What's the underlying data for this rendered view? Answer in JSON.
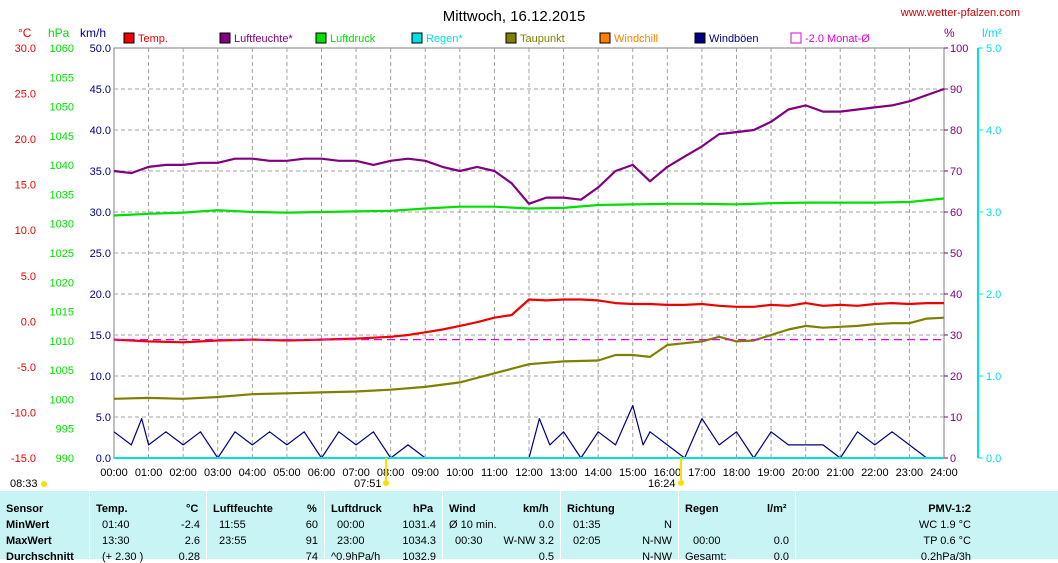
{
  "title": "Mittwoch, 16.12.2015",
  "website": "www.wetter-pfalzen.com",
  "colors": {
    "temp": "#ee0000",
    "humidity": "#800080",
    "pressure": "#00e000",
    "rain": "#00e0e0",
    "dewpoint": "#808000",
    "windchill": "#ff8000",
    "gust": "#000080",
    "monthavg": "#e000e0",
    "table_bg": "#c8f4f6"
  },
  "axes": {
    "temp_unit": "°C",
    "pressure_unit": "hPa",
    "wind_unit": "km/h",
    "humidity_unit": "%",
    "rain_unit": "l/m²",
    "temp_ticks": [
      "30.0",
      "25.0",
      "20.0",
      "15.0",
      "10.0",
      "5.0",
      "0.0",
      "-5.0",
      "-10.0",
      "-15.0"
    ],
    "pressure_ticks": [
      "1060",
      "1055",
      "1050",
      "1045",
      "1040",
      "1035",
      "1030",
      "1025",
      "1020",
      "1015",
      "1010",
      "1005",
      "1000",
      "995",
      "990"
    ],
    "wind_ticks": [
      "50.0",
      "45.0",
      "40.0",
      "35.0",
      "30.0",
      "25.0",
      "20.0",
      "15.0",
      "10.0",
      "5.0",
      "0.0"
    ],
    "humidity_ticks": [
      "100",
      "90",
      "80",
      "70",
      "60",
      "50",
      "40",
      "30",
      "20",
      "10",
      "0"
    ],
    "rain_ticks": [
      "5.0",
      "4.0",
      "3.0",
      "2.0",
      "1.0",
      "0.0"
    ],
    "time_ticks": [
      "00:00",
      "01:00",
      "02:00",
      "03:00",
      "04:00",
      "05:00",
      "06:00",
      "07:00",
      "08:00",
      "09:00",
      "10:00",
      "11:00",
      "12:00",
      "13:00",
      "14:00",
      "15:00",
      "16:00",
      "17:00",
      "18:00",
      "19:00",
      "20:00",
      "21:00",
      "22:00",
      "23:00",
      "24:00"
    ]
  },
  "markers": {
    "moonset": "08:33",
    "sunrise": "07:51",
    "sunset": "16:24"
  },
  "chart_data": {
    "type": "line",
    "title": "Mittwoch, 16.12.2015",
    "x_unit": "hour",
    "series": [
      {
        "name": "Temp.",
        "color": "#ee0000",
        "axis": "temp",
        "x": [
          0,
          1,
          2,
          3,
          4,
          5,
          6,
          7,
          7.5,
          8,
          8.5,
          9,
          9.5,
          10,
          10.5,
          11,
          11.5,
          12,
          12.5,
          13,
          13.5,
          14,
          14.5,
          15,
          15.5,
          16,
          16.5,
          17,
          17.5,
          18,
          18.5,
          19,
          19.5,
          20,
          20.5,
          21,
          21.5,
          22,
          22.5,
          23,
          23.5,
          24
        ],
        "y": [
          -2.0,
          -2.2,
          -2.3,
          -2.1,
          -2.0,
          -2.1,
          -2.0,
          -1.9,
          -1.8,
          -1.7,
          -1.5,
          -1.2,
          -0.9,
          -0.5,
          -0.1,
          0.4,
          0.7,
          2.4,
          2.3,
          2.4,
          2.4,
          2.3,
          2.0,
          1.9,
          1.9,
          1.8,
          1.8,
          1.9,
          1.7,
          1.6,
          1.6,
          1.8,
          1.7,
          2.0,
          1.7,
          1.8,
          1.7,
          1.9,
          2.0,
          1.9,
          2.0,
          2.0
        ]
      },
      {
        "name": "Luftfeuchte*",
        "color": "#800080",
        "axis": "humidity",
        "x": [
          0,
          0.5,
          1,
          1.5,
          2,
          2.5,
          3,
          3.5,
          4,
          4.5,
          5,
          5.5,
          6,
          6.5,
          7,
          7.5,
          8,
          8.5,
          9,
          9.5,
          10,
          10.5,
          11,
          11.5,
          12,
          12.5,
          13,
          13.5,
          14,
          14.5,
          15,
          15.5,
          16,
          16.5,
          17,
          17.5,
          18,
          18.5,
          19,
          19.5,
          20,
          20.5,
          21,
          21.5,
          22,
          22.5,
          23,
          23.5,
          24
        ],
        "y": [
          70,
          69.5,
          71,
          71.5,
          71.5,
          72,
          72,
          73,
          73,
          72.5,
          72.5,
          73,
          73,
          72.5,
          72.5,
          71.5,
          72.5,
          73,
          72.5,
          71,
          70,
          71,
          70,
          67,
          62,
          63.5,
          63.5,
          63,
          66,
          70,
          71.5,
          67.5,
          71,
          73.5,
          76,
          79,
          79.5,
          80,
          82,
          85,
          86,
          84.5,
          84.5,
          85,
          85.5,
          86,
          87,
          88.5,
          90
        ]
      },
      {
        "name": "Luftdruck",
        "color": "#00e000",
        "axis": "pressure",
        "x": [
          0,
          1,
          2,
          3,
          4,
          5,
          6,
          7,
          8,
          9,
          10,
          11,
          12,
          13,
          14,
          15,
          16,
          17,
          18,
          19,
          20,
          21,
          22,
          23,
          24
        ],
        "y": [
          1031.4,
          1031.7,
          1031.9,
          1032.3,
          1032.0,
          1031.9,
          1032.0,
          1032.1,
          1032.2,
          1032.6,
          1032.9,
          1032.9,
          1032.6,
          1032.7,
          1033.2,
          1033.3,
          1033.4,
          1033.4,
          1033.3,
          1033.5,
          1033.6,
          1033.6,
          1033.6,
          1033.7,
          1034.3
        ]
      },
      {
        "name": "Taupunkt",
        "color": "#808000",
        "axis": "temp",
        "x": [
          0,
          1,
          2,
          3,
          4,
          5,
          6,
          7,
          8,
          9,
          10,
          11,
          12,
          13,
          14,
          14.5,
          15,
          15.5,
          16,
          16.5,
          17,
          17.5,
          18,
          18.5,
          19,
          19.5,
          20,
          20.5,
          21,
          21.5,
          22,
          22.5,
          23,
          23.5,
          24
        ],
        "y": [
          -8.5,
          -8.4,
          -8.5,
          -8.3,
          -8.0,
          -7.9,
          -7.8,
          -7.7,
          -7.5,
          -7.2,
          -6.7,
          -5.7,
          -4.7,
          -4.4,
          -4.3,
          -3.7,
          -3.7,
          -3.9,
          -2.6,
          -2.4,
          -2.2,
          -1.7,
          -2.2,
          -2.1,
          -1.5,
          -0.9,
          -0.5,
          -0.7,
          -0.6,
          -0.5,
          -0.3,
          -0.2,
          -0.2,
          0.3,
          0.4
        ]
      },
      {
        "name": "Windböen",
        "color": "#000080",
        "axis": "wind",
        "x": [
          0,
          0.5,
          0.8,
          1,
          1.5,
          2,
          2.5,
          3,
          3.5,
          4,
          4.5,
          5,
          5.5,
          6,
          6.5,
          7,
          7.5,
          8,
          8.5,
          9,
          9.5,
          10,
          10.5,
          11,
          11.5,
          12,
          12.3,
          12.6,
          13,
          13.5,
          14,
          14.5,
          15,
          15.3,
          15.5,
          16,
          16.5,
          17,
          17.5,
          18,
          18.5,
          19,
          19.5,
          20,
          20.5,
          21,
          21.5,
          22,
          22.5,
          23,
          23.5,
          24
        ],
        "y": [
          3.2,
          1.6,
          4.8,
          1.6,
          3.2,
          1.6,
          3.2,
          0,
          3.2,
          1.6,
          3.2,
          1.6,
          3.2,
          0,
          3.2,
          1.6,
          3.2,
          0,
          1.6,
          0,
          0,
          0,
          0,
          0,
          0,
          0,
          4.8,
          1.6,
          3.2,
          0,
          3.2,
          1.6,
          6.4,
          1.6,
          3.2,
          1.6,
          0,
          4.8,
          1.6,
          3.2,
          0,
          3.2,
          1.6,
          1.6,
          1.6,
          0,
          3.2,
          1.6,
          3.2,
          1.6,
          0,
          0
        ]
      },
      {
        "name": "-2.0 Monat-Ø",
        "color": "#e000e0",
        "axis": "temp",
        "dashed": true,
        "x": [
          0,
          24
        ],
        "y": [
          -2.0,
          -2.0
        ]
      }
    ],
    "legend": [
      "Temp.",
      "Luftfeuchte*",
      "Luftdruck",
      "Regen*",
      "Taupunkt",
      "Windchill",
      "Windböen",
      "-2.0 Monat-Ø"
    ],
    "ylim_temp": [
      -15,
      30
    ],
    "ylim_pressure": [
      990,
      1060
    ],
    "ylim_wind": [
      0,
      50
    ],
    "ylim_humidity": [
      0,
      100
    ],
    "ylim_rain": [
      0,
      5
    ],
    "grid": true
  },
  "table": {
    "headers": {
      "sensor": "Sensor",
      "temp": "Temp.",
      "temp_unit": "°C",
      "hum": "Luftfeuchte",
      "hum_unit": "%",
      "press": "Luftdruck",
      "press_unit": "hPa",
      "wind": "Wind",
      "wind_unit": "km/h",
      "dir": "Richtung",
      "rain": "Regen",
      "rain_unit": "l/m²",
      "pmv": "PMV-1:2"
    },
    "rows": [
      {
        "label": "MinWert",
        "t_time": "01:40",
        "t_val": "-2.4",
        "h_time": "11:55",
        "h_val": "60",
        "p_time": "00:00",
        "p_val": "1031.4",
        "w_a": "Ø 10 min.",
        "w_b": "0.0",
        "d_a": "01:35",
        "d_b": "N",
        "r_a": "",
        "r_b": "",
        "pmv": "WC 1.9 °C"
      },
      {
        "label": "MaxWert",
        "t_time": "13:30",
        "t_val": "2.6",
        "h_time": "23:55",
        "h_val": "91",
        "p_time": "23:00",
        "p_val": "1034.3",
        "w_a": "00:30",
        "w_b": "W-NW 3.2",
        "d_a": "02:05",
        "d_b": "N-NW",
        "r_a": "00:00",
        "r_b": "0.0",
        "pmv": "TP 0.6 °C"
      },
      {
        "label": "Durchschnitt",
        "t_time": "(+ 2.30 )",
        "t_val": "0.28",
        "h_time": "",
        "h_val": "74",
        "p_time": "^0.9hPa/h",
        "p_val": "1032.9",
        "w_a": "",
        "w_b": "0.5",
        "d_a": "",
        "d_b": "N-NW",
        "r_a": "Gesamt:",
        "r_b": "0.0",
        "pmv": "0.2hPa/3h"
      }
    ]
  }
}
